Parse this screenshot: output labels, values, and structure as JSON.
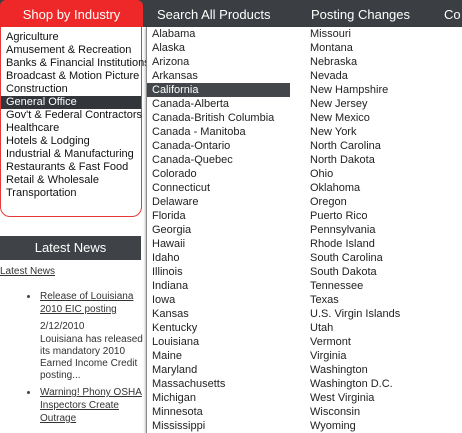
{
  "nav": {
    "shop_by_industry": "Shop by Industry",
    "search_all_products": "Search All Products",
    "posting_changes": "Posting Changes",
    "more_partial": "Co"
  },
  "industries": [
    "Agriculture",
    "Amusement & Recreation",
    "Banks & Financial Institutions",
    "Broadcast & Motion Picture",
    "Construction",
    "General Office",
    "Gov't & Federal Contractors",
    "Healthcare",
    "Hotels & Lodging",
    "Industrial & Manufacturing",
    "Restaurants & Fast Food",
    "Retail & Wholesale",
    "Transportation"
  ],
  "industry_selected": "General Office",
  "latest_news": {
    "header": "Latest News",
    "link": "Latest News",
    "items": [
      {
        "title": "Release of Louisiana 2010 EIC posting",
        "date": "2/12/2010",
        "excerpt": "Louisiana has released its mandatory 2010 Earned Income Credit posting..."
      },
      {
        "title": "Warning! Phony OSHA Inspectors Create Outrage"
      }
    ]
  },
  "states": {
    "left": [
      "Alabama",
      "Alaska",
      "Arizona",
      "Arkansas",
      "California",
      "Canada-Alberta",
      "Canada-British Columbia",
      "Canada - Manitoba",
      "Canada-Ontario",
      "Canada-Quebec",
      "Colorado",
      "Connecticut",
      "Delaware",
      "Florida",
      "Georgia",
      "Hawaii",
      "Idaho",
      "Illinois",
      "Indiana",
      "Iowa",
      "Kansas",
      "Kentucky",
      "Louisiana",
      "Maine",
      "Maryland",
      "Massachusetts",
      "Michigan",
      "Minnesota",
      "Mississippi"
    ],
    "right": [
      "Missouri",
      "Montana",
      "Nebraska",
      "Nevada",
      "New Hampshire",
      "New Jersey",
      "New Mexico",
      "New York",
      "North Carolina",
      "North Dakota",
      "Ohio",
      "Oklahoma",
      "Oregon",
      "Puerto Rico",
      "Pennsylvania",
      "Rhode Island",
      "South Carolina",
      "South Dakota",
      "Tennessee",
      "Texas",
      "U.S. Virgin Islands",
      "Utah",
      "Vermont",
      "Virginia",
      "Washington",
      "Washington D.C.",
      "West Virginia",
      "Wisconsin",
      "Wyoming"
    ],
    "selected": "California"
  },
  "colors": {
    "nav_bg": "#3b3e42",
    "accent_red": "#ee2828",
    "highlight": "#32363a"
  }
}
